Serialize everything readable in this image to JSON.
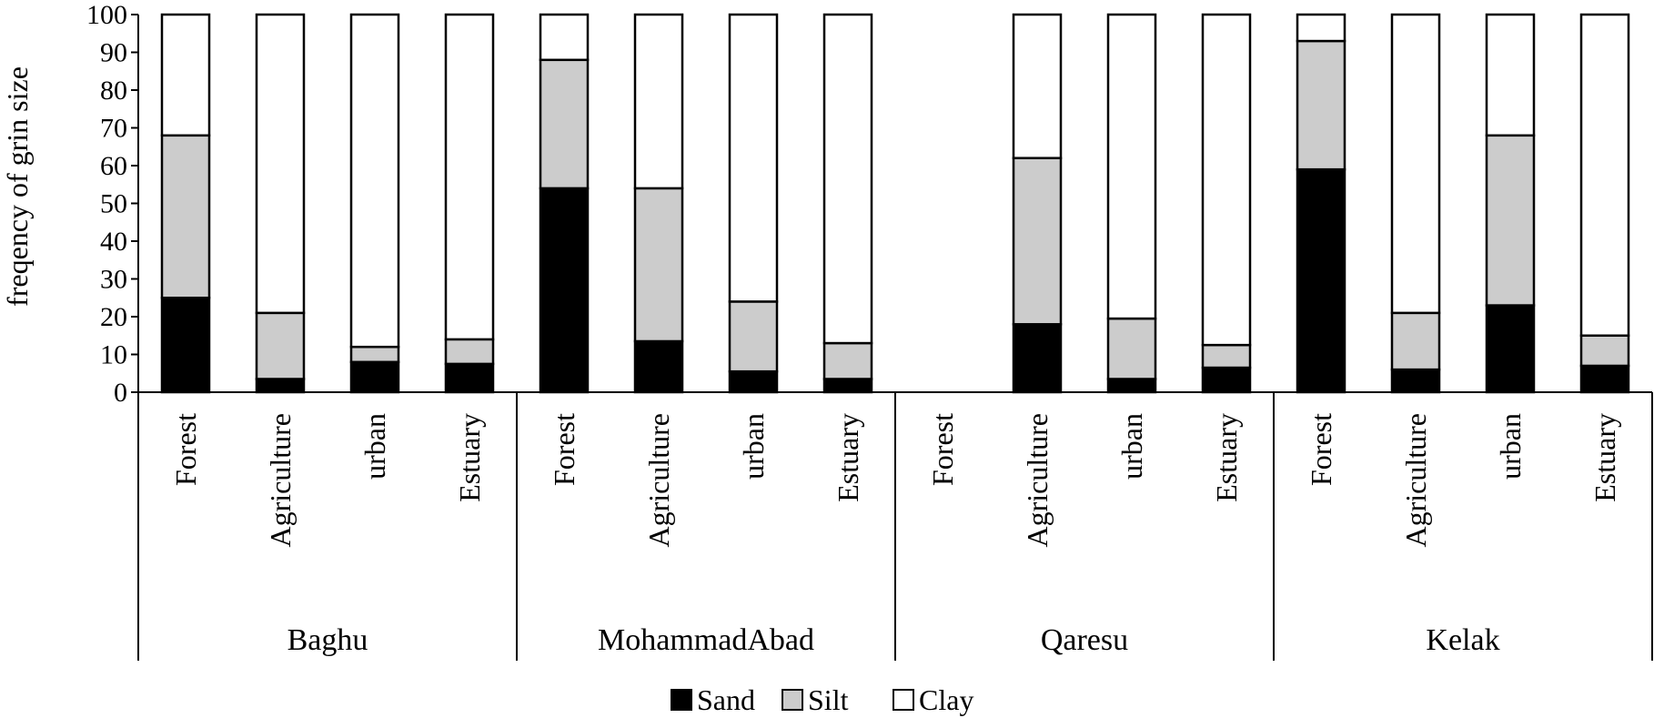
{
  "chart_data": {
    "type": "bar",
    "stacked": true,
    "ylabel": "freqency of grin size",
    "ylim": [
      0,
      100
    ],
    "yticks": [
      0,
      10,
      20,
      30,
      40,
      50,
      60,
      70,
      80,
      90,
      100
    ],
    "grid": false,
    "legend_position": "bottom",
    "groups": [
      {
        "name": "Baghu",
        "categories": [
          "Forest",
          "Agriculture",
          "urban",
          "Estuary"
        ]
      },
      {
        "name": "MohammadAbad",
        "categories": [
          "Forest",
          "Agriculture",
          "urban",
          "Estuary"
        ]
      },
      {
        "name": "Qaresu",
        "categories": [
          "Forest",
          "Agriculture",
          "urban",
          "Estuary"
        ]
      },
      {
        "name": "Kelak",
        "categories": [
          "Forest",
          "Agriculture",
          "urban",
          "Estuary"
        ]
      }
    ],
    "series": [
      {
        "name": "Sand",
        "color": "#000000",
        "values": [
          25,
          3.5,
          8,
          7.5,
          54,
          13.5,
          5.5,
          3.5,
          0,
          18,
          3.5,
          6.5,
          59,
          6,
          23,
          7
        ]
      },
      {
        "name": "Silt",
        "color": "#cccccc",
        "values": [
          43,
          17.5,
          4,
          6.5,
          34,
          40.5,
          18.5,
          9.5,
          0,
          44,
          16,
          6,
          34,
          15,
          45,
          8
        ]
      },
      {
        "name": "Clay",
        "color": "#ffffff",
        "values": [
          32,
          79,
          88,
          86,
          12,
          46,
          76,
          87,
          0,
          38,
          80.5,
          87.5,
          7,
          79,
          32,
          85
        ]
      }
    ]
  }
}
